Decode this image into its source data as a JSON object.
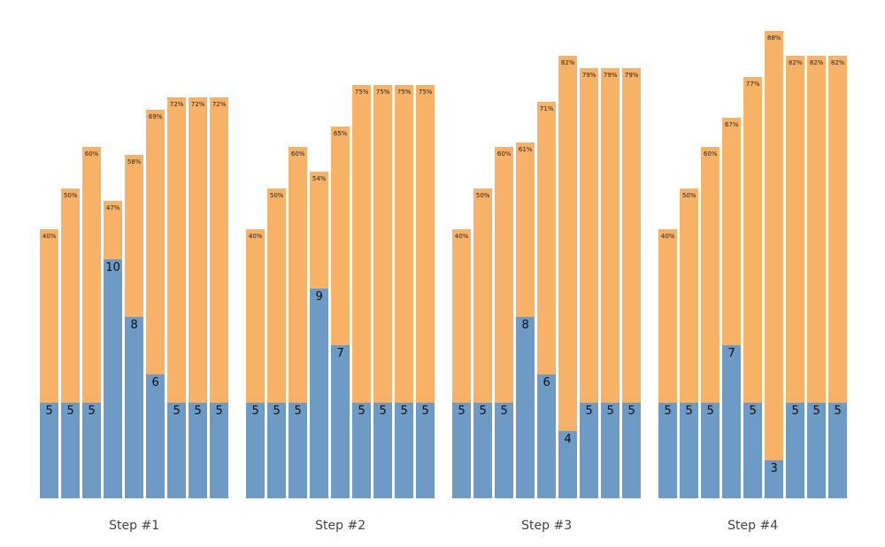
{
  "chart_data": {
    "type": "bar",
    "subtype": "grouped-stacked-vertical",
    "title": "",
    "xlabel": "",
    "ylabel": "",
    "grid": false,
    "legend": null,
    "colors": {
      "bottom_segment": "#6E9BC5",
      "top_segment": "#F8B267",
      "background": "#FFFFFF"
    },
    "segment_semantics": "Each bar is a stacked column: blue bottom segment labeled with a count, orange top segment labeled with a percentage at its top.",
    "groups": [
      {
        "label": "Step #1",
        "bars": [
          {
            "count": 5,
            "count_label": "5",
            "percent": 40,
            "percent_label": "40%"
          },
          {
            "count": 5,
            "count_label": "5",
            "percent": 50,
            "percent_label": "50%"
          },
          {
            "count": 5,
            "count_label": "5",
            "percent": 60,
            "percent_label": "60%"
          },
          {
            "count": 10,
            "count_label": "10",
            "percent": 47,
            "percent_label": "47%"
          },
          {
            "count": 8,
            "count_label": "8",
            "percent": 58,
            "percent_label": "58%"
          },
          {
            "count": 6,
            "count_label": "6",
            "percent": 69,
            "percent_label": "69%"
          },
          {
            "count": 5,
            "count_label": "5",
            "percent": 72,
            "percent_label": "72%"
          },
          {
            "count": 5,
            "count_label": "5",
            "percent": 72,
            "percent_label": "72%"
          },
          {
            "count": 5,
            "count_label": "5",
            "percent": 72,
            "percent_label": "72%"
          }
        ]
      },
      {
        "label": "Step #2",
        "bars": [
          {
            "count": 5,
            "count_label": "5",
            "percent": 40,
            "percent_label": "40%"
          },
          {
            "count": 5,
            "count_label": "5",
            "percent": 50,
            "percent_label": "50%"
          },
          {
            "count": 5,
            "count_label": "5",
            "percent": 60,
            "percent_label": "60%"
          },
          {
            "count": 9,
            "count_label": "9",
            "percent": 54,
            "percent_label": "54%"
          },
          {
            "count": 7,
            "count_label": "7",
            "percent": 65,
            "percent_label": "65%"
          },
          {
            "count": 5,
            "count_label": "5",
            "percent": 75,
            "percent_label": "75%"
          },
          {
            "count": 5,
            "count_label": "5",
            "percent": 75,
            "percent_label": "75%"
          },
          {
            "count": 5,
            "count_label": "5",
            "percent": 75,
            "percent_label": "75%"
          },
          {
            "count": 5,
            "count_label": "5",
            "percent": 75,
            "percent_label": "75%"
          }
        ]
      },
      {
        "label": "Step #3",
        "bars": [
          {
            "count": 5,
            "count_label": "5",
            "percent": 40,
            "percent_label": "40%"
          },
          {
            "count": 5,
            "count_label": "5",
            "percent": 50,
            "percent_label": "50%"
          },
          {
            "count": 5,
            "count_label": "5",
            "percent": 60,
            "percent_label": "60%"
          },
          {
            "count": 8,
            "count_label": "8",
            "percent": 61,
            "percent_label": "61%"
          },
          {
            "count": 6,
            "count_label": "6",
            "percent": 71,
            "percent_label": "71%"
          },
          {
            "count": 4,
            "count_label": "4",
            "percent": 82,
            "percent_label": "82%"
          },
          {
            "count": 5,
            "count_label": "5",
            "percent": 79,
            "percent_label": "79%"
          },
          {
            "count": 5,
            "count_label": "5",
            "percent": 79,
            "percent_label": "79%"
          },
          {
            "count": 5,
            "count_label": "5",
            "percent": 79,
            "percent_label": "79%"
          }
        ]
      },
      {
        "label": "Step #4",
        "bars": [
          {
            "count": 5,
            "count_label": "5",
            "percent": 40,
            "percent_label": "40%"
          },
          {
            "count": 5,
            "count_label": "5",
            "percent": 50,
            "percent_label": "50%"
          },
          {
            "count": 5,
            "count_label": "5",
            "percent": 60,
            "percent_label": "60%"
          },
          {
            "count": 7,
            "count_label": "7",
            "percent": 67,
            "percent_label": "67%"
          },
          {
            "count": 5,
            "count_label": "5",
            "percent": 77,
            "percent_label": "77%"
          },
          {
            "count": 3,
            "count_label": "3",
            "percent": 88,
            "percent_label": "88%"
          },
          {
            "count": 5,
            "count_label": "5",
            "percent": 82,
            "percent_label": "82%"
          },
          {
            "count": 5,
            "count_label": "5",
            "percent": 82,
            "percent_label": "82%"
          },
          {
            "count": 5,
            "count_label": "5",
            "percent": 82,
            "percent_label": "82%"
          }
        ]
      }
    ]
  }
}
